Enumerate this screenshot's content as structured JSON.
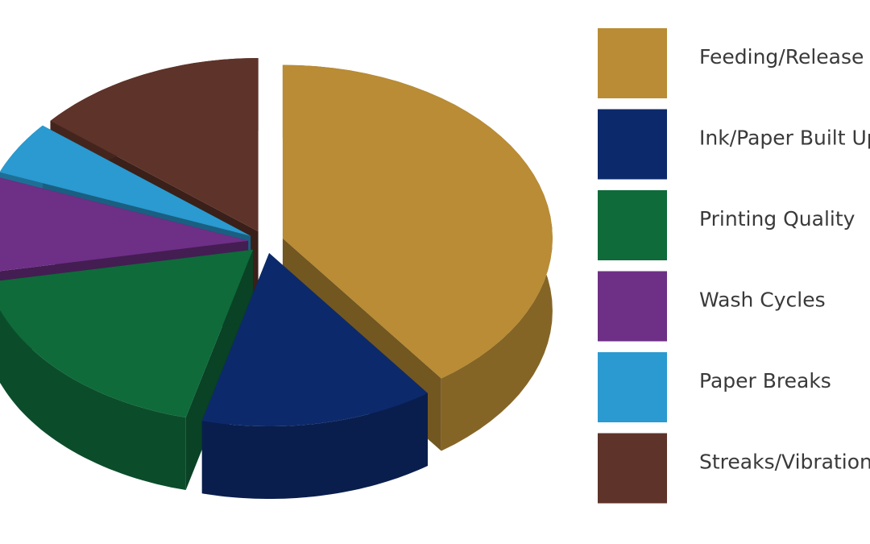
{
  "chart_data": {
    "type": "pie3d",
    "categories": [
      "Feeding/Release",
      "Ink/Paper Built Up",
      "Printing Quality",
      "Wash Cycles",
      "Paper Breaks",
      "Streaks/Vibration"
    ],
    "values": [
      40,
      14,
      18,
      9,
      5,
      14
    ],
    "colors": [
      "#b98c35",
      "#0c2a6b",
      "#0f6b3a",
      "#6e2f86",
      "#2a9ad0",
      "#5e3329"
    ],
    "legend": "right"
  }
}
